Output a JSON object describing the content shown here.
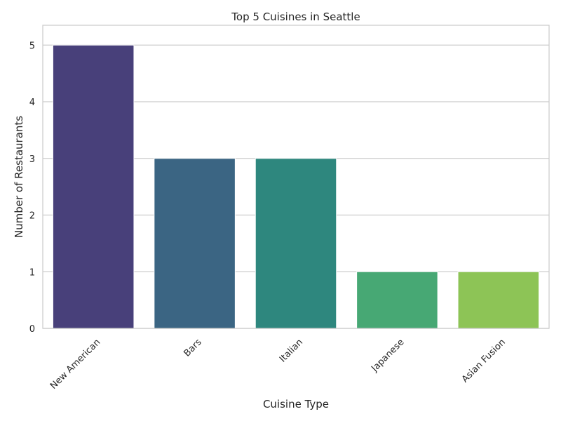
{
  "chart_data": {
    "type": "bar",
    "title": "Top 5 Cuisines in Seattle",
    "xlabel": "Cuisine Type",
    "ylabel": "Number of Restaurants",
    "categories": [
      "New American",
      "Bars",
      "Italian",
      "Japanese",
      "Asian Fusion"
    ],
    "values": [
      5,
      3,
      3,
      1,
      1
    ],
    "colors": [
      "#48407a",
      "#3b6583",
      "#2e877e",
      "#47a874",
      "#8dc456"
    ],
    "ylim": [
      0,
      5.35
    ],
    "yticks": [
      "0",
      "1",
      "2",
      "3",
      "4",
      "5"
    ],
    "grid": "horizontal",
    "legend": "none"
  }
}
